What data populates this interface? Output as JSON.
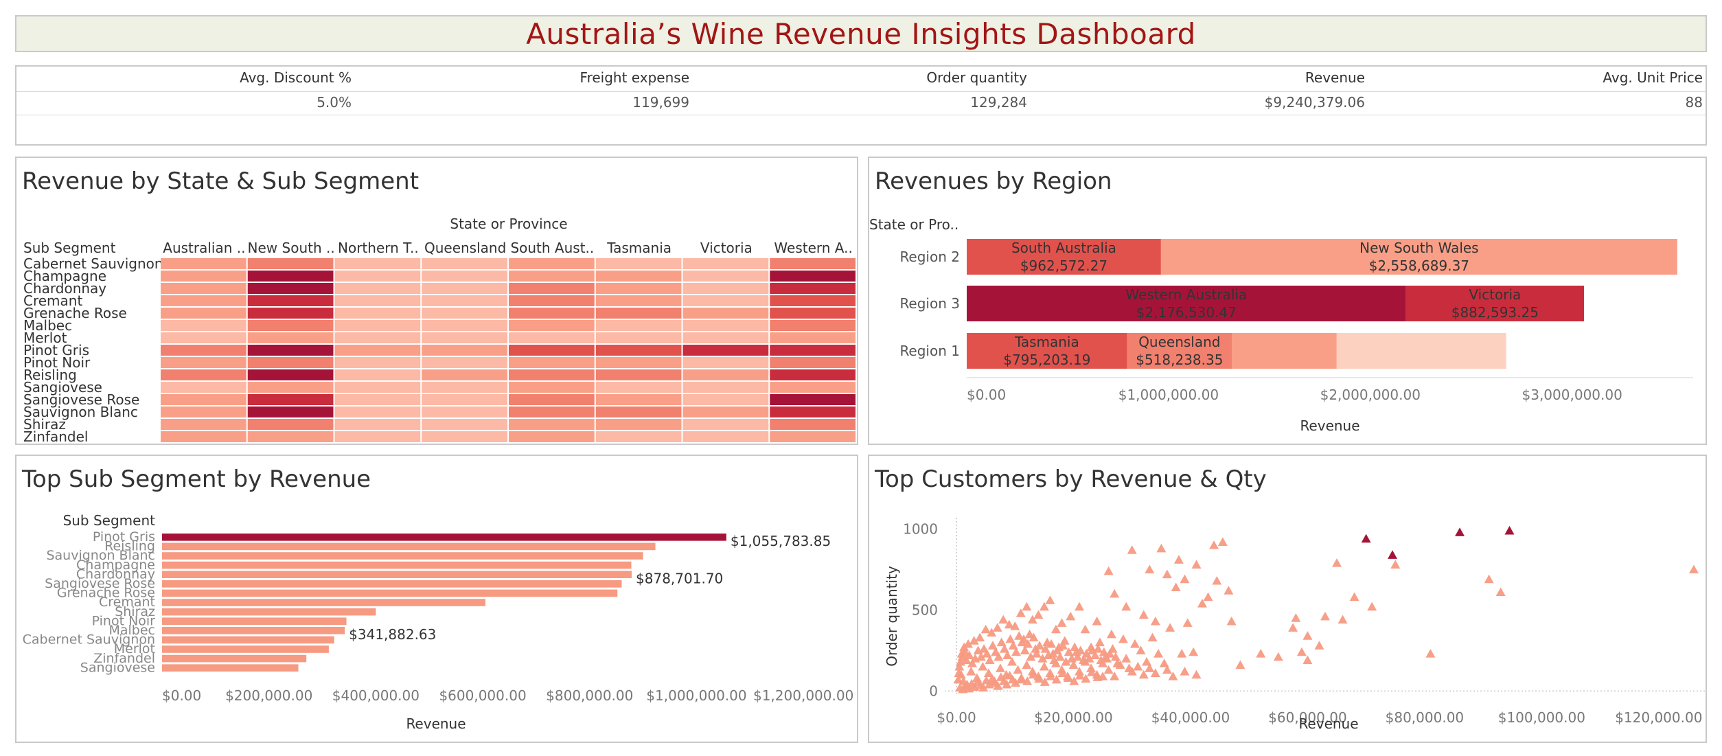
{
  "dashboard_title": "Australia’s Wine Revenue Insights Dashboard",
  "kpis": [
    {
      "label": "Avg. Discount %",
      "value": "5.0%"
    },
    {
      "label": "Freight expense",
      "value": "119,699"
    },
    {
      "label": "Order quantity",
      "value": "129,284"
    },
    {
      "label": "Revenue",
      "value": "$9,240,379.06"
    },
    {
      "label": "Avg. Unit Price",
      "value": "88"
    }
  ],
  "panels": {
    "heatmap_title": "Revenue by State & Sub Segment",
    "region_title": "Revenues by Region",
    "subsegment_title": "Top Sub Segment by Revenue",
    "customers_title": "Top Customers by Revenue & Qty"
  },
  "colors": {
    "title_text": "#a31515",
    "title_bg": "#eef1e4",
    "scale": [
      "#fdd1c0",
      "#fcb9a5",
      "#fa9f87",
      "#f2806e",
      "#e2524d",
      "#c92c3c",
      "#a61339"
    ],
    "bar_default": "#f79a82",
    "bar_highlight": "#a61339",
    "marker_default": "#f79a82",
    "marker_highlight": "#a61339"
  },
  "chart_data": [
    {
      "type": "heatmap",
      "title": "Revenue by State & Sub Segment",
      "column_header": "State or Province",
      "row_header": "Sub Segment",
      "columns": [
        "Australian ..",
        "New South ..",
        "Northern T..",
        "Queensland",
        "South Aust..",
        "Tasmania",
        "Victoria",
        "Western A.."
      ],
      "rows": [
        "Cabernet Sauvignon",
        "Champagne",
        "Chardonnay",
        "Cremant",
        "Grenache Rose",
        "Malbec",
        "Merlot",
        "Pinot Gris",
        "Pinot Noir",
        "Reisling",
        "Sangiovese",
        "Sangiovese Rose",
        "Sauvignon Blanc",
        "Shiraz",
        "Zinfandel"
      ],
      "values": [
        [
          2,
          3,
          1,
          1,
          2,
          1,
          1,
          3
        ],
        [
          2,
          6,
          1,
          1,
          2,
          2,
          1,
          6
        ],
        [
          2,
          6,
          1,
          1,
          3,
          2,
          1,
          5
        ],
        [
          2,
          5,
          1,
          1,
          3,
          2,
          1,
          4
        ],
        [
          2,
          5,
          1,
          1,
          3,
          3,
          2,
          4
        ],
        [
          1,
          3,
          1,
          1,
          2,
          1,
          1,
          3
        ],
        [
          1,
          2,
          1,
          1,
          1,
          1,
          1,
          2
        ],
        [
          3,
          6,
          2,
          2,
          4,
          4,
          5,
          5
        ],
        [
          2,
          3,
          1,
          1,
          2,
          2,
          1,
          3
        ],
        [
          3,
          6,
          1,
          2,
          3,
          3,
          2,
          5
        ],
        [
          1,
          2,
          1,
          1,
          2,
          1,
          1,
          2
        ],
        [
          2,
          5,
          1,
          1,
          3,
          2,
          1,
          6
        ],
        [
          2,
          6,
          1,
          1,
          3,
          3,
          2,
          5
        ],
        [
          2,
          3,
          1,
          1,
          2,
          2,
          1,
          3
        ],
        [
          2,
          2,
          1,
          1,
          2,
          1,
          1,
          2
        ]
      ],
      "value_scale": "relative revenue level 0 (lowest) to 6 (highest)"
    },
    {
      "type": "bar",
      "stacked": true,
      "orientation": "horizontal",
      "title": "Revenues by Region",
      "row_header": "State or Pro..",
      "categories": [
        "Region 2",
        "Region 3",
        "Region 1"
      ],
      "segments": [
        [
          {
            "state": "South Australia",
            "value": 962572.27,
            "label": "$962,572.27",
            "color_level": 4
          },
          {
            "state": "New South Wales",
            "value": 2558689.37,
            "label": "$2,558,689.37",
            "color_level": 2
          }
        ],
        [
          {
            "state": "Western Australia",
            "value": 2176530.47,
            "label": "$2,176,530.47",
            "color_level": 6
          },
          {
            "state": "Victoria",
            "value": 882593.25,
            "label": "$882,593.25",
            "color_level": 5
          }
        ],
        [
          {
            "state": "Tasmania",
            "value": 795203.19,
            "label": "$795,203.19",
            "color_level": 4
          },
          {
            "state": "Queensland",
            "value": 518238.35,
            "label": "$518,238.35",
            "color_level": 3
          },
          {
            "state": "",
            "value": 520000,
            "label": "",
            "color_level": 2
          },
          {
            "state": "",
            "value": 840000,
            "label": "",
            "color_level": 0
          }
        ]
      ],
      "xlabel": "Revenue",
      "xlim": [
        0,
        3600000
      ],
      "xticks": [
        0,
        1000000,
        2000000,
        3000000
      ],
      "xtick_labels": [
        "$0.00",
        "$1,000,000.00",
        "$2,000,000.00",
        "$3,000,000.00"
      ]
    },
    {
      "type": "bar",
      "orientation": "horizontal",
      "title": "Top Sub Segment by Revenue",
      "row_header": "Sub Segment",
      "categories": [
        "Pinot Gris",
        "Reisling",
        "Sauvignon Blanc",
        "Champagne",
        "Chardonnay",
        "Sangiovese Rose",
        "Grenache Rose",
        "Cremant",
        "Shiraz",
        "Pinot Noir",
        "Malbec",
        "Cabernet Sauvignon",
        "Merlot",
        "Zinfandel",
        "Sangiovese"
      ],
      "values": [
        1055783.85,
        923000,
        900000,
        878000,
        878701.7,
        860000,
        852000,
        605000,
        400000,
        345000,
        341882.63,
        322000,
        312000,
        270000,
        255000
      ],
      "highlight": [
        "Pinot Gris"
      ],
      "data_labels": [
        {
          "category": "Pinot Gris",
          "text": "$1,055,783.85"
        },
        {
          "category": "Chardonnay",
          "text": "$878,701.70"
        },
        {
          "category": "Malbec",
          "text": "$341,882.63"
        }
      ],
      "xlabel": "Revenue",
      "xlim": [
        0,
        1300000
      ],
      "xticks": [
        0,
        200000,
        400000,
        600000,
        800000,
        1000000,
        1200000
      ],
      "xtick_labels": [
        "$0.00",
        "$200,000.00",
        "$400,000.00",
        "$600,000.00",
        "$800,000.00",
        "$1,000,000.00",
        "$1,200,000.00"
      ]
    },
    {
      "type": "scatter",
      "title": "Top Customers by Revenue & Qty",
      "marker": "triangle",
      "xlabel": "Revenue",
      "ylabel": "Order quantity",
      "xlim": [
        -2000,
        128000
      ],
      "ylim": [
        -20,
        1070
      ],
      "xticks": [
        0,
        20000,
        40000,
        60000,
        80000,
        100000,
        120000
      ],
      "xtick_labels": [
        "$0.00",
        "$20,000.00",
        "$40,000.00",
        "$60,000.00",
        "$80,000.00",
        "$100,000.00",
        "$120,000.00"
      ],
      "yticks": [
        0,
        500,
        1000
      ],
      "ytick_labels": [
        "0",
        "500",
        "1000"
      ],
      "highlight_points": [
        [
          70000,
          940
        ],
        [
          74500,
          840
        ],
        [
          86000,
          980
        ],
        [
          94500,
          990
        ]
      ],
      "points": [
        [
          126000,
          750
        ],
        [
          91000,
          690
        ],
        [
          93000,
          610
        ],
        [
          81000,
          230
        ],
        [
          65000,
          790
        ],
        [
          68000,
          580
        ],
        [
          71000,
          520
        ],
        [
          75000,
          780
        ],
        [
          58000,
          450
        ],
        [
          60000,
          340
        ],
        [
          62000,
          280
        ],
        [
          63000,
          460
        ],
        [
          66000,
          440
        ],
        [
          59000,
          240
        ],
        [
          60000,
          190
        ],
        [
          57500,
          390
        ],
        [
          30000,
          870
        ],
        [
          33000,
          750
        ],
        [
          35000,
          880
        ],
        [
          38000,
          810
        ],
        [
          41000,
          780
        ],
        [
          44000,
          900
        ],
        [
          45500,
          920
        ],
        [
          46500,
          620
        ],
        [
          47000,
          430
        ],
        [
          44500,
          680
        ],
        [
          36000,
          720
        ],
        [
          37500,
          640
        ],
        [
          39000,
          690
        ],
        [
          42000,
          540
        ],
        [
          43000,
          580
        ],
        [
          39500,
          420
        ],
        [
          36500,
          390
        ],
        [
          34000,
          430
        ],
        [
          32000,
          470
        ],
        [
          29000,
          520
        ],
        [
          27000,
          600
        ],
        [
          26000,
          740
        ],
        [
          24000,
          430
        ],
        [
          22000,
          380
        ],
        [
          21000,
          520
        ],
        [
          19500,
          460
        ],
        [
          18000,
          420
        ],
        [
          17000,
          380
        ],
        [
          16000,
          560
        ],
        [
          15000,
          520
        ],
        [
          14000,
          470
        ],
        [
          13000,
          440
        ],
        [
          12000,
          520
        ],
        [
          11000,
          480
        ],
        [
          10000,
          400
        ],
        [
          9000,
          410
        ],
        [
          8000,
          440
        ],
        [
          7000,
          390
        ],
        [
          12500,
          350
        ],
        [
          11500,
          320
        ],
        [
          6000,
          360
        ],
        [
          5000,
          380
        ],
        [
          4000,
          330
        ],
        [
          3000,
          310
        ],
        [
          2000,
          290
        ],
        [
          1500,
          240
        ],
        [
          1000,
          210
        ],
        [
          18500,
          310
        ],
        [
          17500,
          270
        ],
        [
          16500,
          230
        ],
        [
          15500,
          300
        ],
        [
          13500,
          260
        ],
        [
          24500,
          300
        ],
        [
          26500,
          350
        ],
        [
          28500,
          320
        ],
        [
          30500,
          290
        ],
        [
          31500,
          250
        ],
        [
          20500,
          240
        ],
        [
          23000,
          270
        ],
        [
          25500,
          210
        ],
        [
          27500,
          170
        ],
        [
          29500,
          140
        ],
        [
          32500,
          180
        ],
        [
          34500,
          230
        ],
        [
          35500,
          170
        ],
        [
          38500,
          230
        ],
        [
          40500,
          240
        ],
        [
          48500,
          160
        ],
        [
          52000,
          230
        ],
        [
          55000,
          210
        ],
        [
          33500,
          330
        ],
        [
          25000,
          90
        ],
        [
          500,
          150
        ],
        [
          800,
          100
        ],
        [
          1200,
          60
        ],
        [
          1800,
          40
        ],
        [
          2500,
          120
        ],
        [
          3500,
          80
        ],
        [
          4500,
          150
        ],
        [
          5500,
          110
        ],
        [
          6500,
          60
        ],
        [
          7500,
          140
        ],
        [
          8500,
          100
        ],
        [
          9500,
          180
        ],
        [
          10500,
          130
        ],
        [
          11000,
          70
        ],
        [
          12000,
          160
        ],
        [
          13000,
          120
        ],
        [
          14000,
          90
        ],
        [
          15000,
          150
        ],
        [
          16000,
          110
        ],
        [
          17000,
          170
        ],
        [
          18000,
          130
        ],
        [
          19000,
          90
        ],
        [
          20000,
          160
        ],
        [
          21000,
          120
        ],
        [
          22000,
          180
        ],
        [
          23000,
          140
        ],
        [
          24000,
          100
        ],
        [
          25000,
          170
        ],
        [
          26000,
          130
        ],
        [
          27000,
          90
        ],
        [
          28000,
          160
        ],
        [
          29000,
          200
        ],
        [
          30000,
          120
        ],
        [
          31000,
          150
        ],
        [
          32000,
          100
        ],
        [
          33000,
          140
        ],
        [
          34000,
          110
        ],
        [
          36000,
          130
        ],
        [
          37000,
          90
        ],
        [
          39000,
          120
        ],
        [
          41000,
          100
        ],
        [
          600,
          20
        ],
        [
          1100,
          10
        ],
        [
          1600,
          30
        ],
        [
          2100,
          15
        ],
        [
          2600,
          45
        ],
        [
          3100,
          25
        ],
        [
          3600,
          55
        ],
        [
          4100,
          35
        ],
        [
          4600,
          20
        ],
        [
          5100,
          65
        ],
        [
          5600,
          40
        ],
        [
          6100,
          75
        ],
        [
          6600,
          50
        ],
        [
          7100,
          30
        ],
        [
          7600,
          85
        ],
        [
          8100,
          60
        ],
        [
          8600,
          40
        ],
        [
          9100,
          95
        ],
        [
          9600,
          70
        ],
        [
          10100,
          50
        ],
        [
          11100,
          80
        ],
        [
          12100,
          60
        ],
        [
          13100,
          100
        ],
        [
          14100,
          75
        ],
        [
          15100,
          55
        ],
        [
          16100,
          90
        ],
        [
          17100,
          70
        ],
        [
          18100,
          110
        ],
        [
          19100,
          80
        ],
        [
          20100,
          60
        ],
        [
          21100,
          95
        ],
        [
          22100,
          75
        ],
        [
          23100,
          115
        ],
        [
          24100,
          85
        ],
        [
          300,
          70
        ],
        [
          400,
          110
        ],
        [
          700,
          180
        ],
        [
          900,
          230
        ],
        [
          1300,
          270
        ],
        [
          1700,
          190
        ],
        [
          2200,
          220
        ],
        [
          2700,
          170
        ],
        [
          3200,
          200
        ],
        [
          3700,
          250
        ],
        [
          4200,
          210
        ],
        [
          4700,
          260
        ],
        [
          5200,
          230
        ],
        [
          5700,
          190
        ],
        [
          6200,
          280
        ],
        [
          6700,
          240
        ],
        [
          7200,
          210
        ],
        [
          7700,
          300
        ],
        [
          8200,
          260
        ],
        [
          8700,
          220
        ],
        [
          9200,
          320
        ],
        [
          9700,
          280
        ],
        [
          10200,
          240
        ],
        [
          10700,
          340
        ],
        [
          11200,
          300
        ],
        [
          11700,
          250
        ],
        [
          12200,
          290
        ],
        [
          12700,
          210
        ],
        [
          13200,
          330
        ],
        [
          13700,
          230
        ],
        [
          14200,
          280
        ],
        [
          14700,
          200
        ],
        [
          15200,
          260
        ],
        [
          15700,
          220
        ],
        [
          16200,
          290
        ],
        [
          16700,
          190
        ],
        [
          17200,
          250
        ],
        [
          17700,
          210
        ],
        [
          18200,
          280
        ],
        [
          18700,
          180
        ],
        [
          19200,
          240
        ],
        [
          19700,
          200
        ],
        [
          20200,
          270
        ],
        [
          20700,
          210
        ],
        [
          21200,
          250
        ],
        [
          21700,
          190
        ],
        [
          22200,
          230
        ],
        [
          22700,
          200
        ],
        [
          23200,
          250
        ],
        [
          23700,
          220
        ],
        [
          24200,
          260
        ],
        [
          24700,
          190
        ],
        [
          25200,
          240
        ],
        [
          25700,
          200
        ],
        [
          26200,
          230
        ],
        [
          26700,
          260
        ],
        [
          27200,
          210
        ]
      ]
    }
  ]
}
